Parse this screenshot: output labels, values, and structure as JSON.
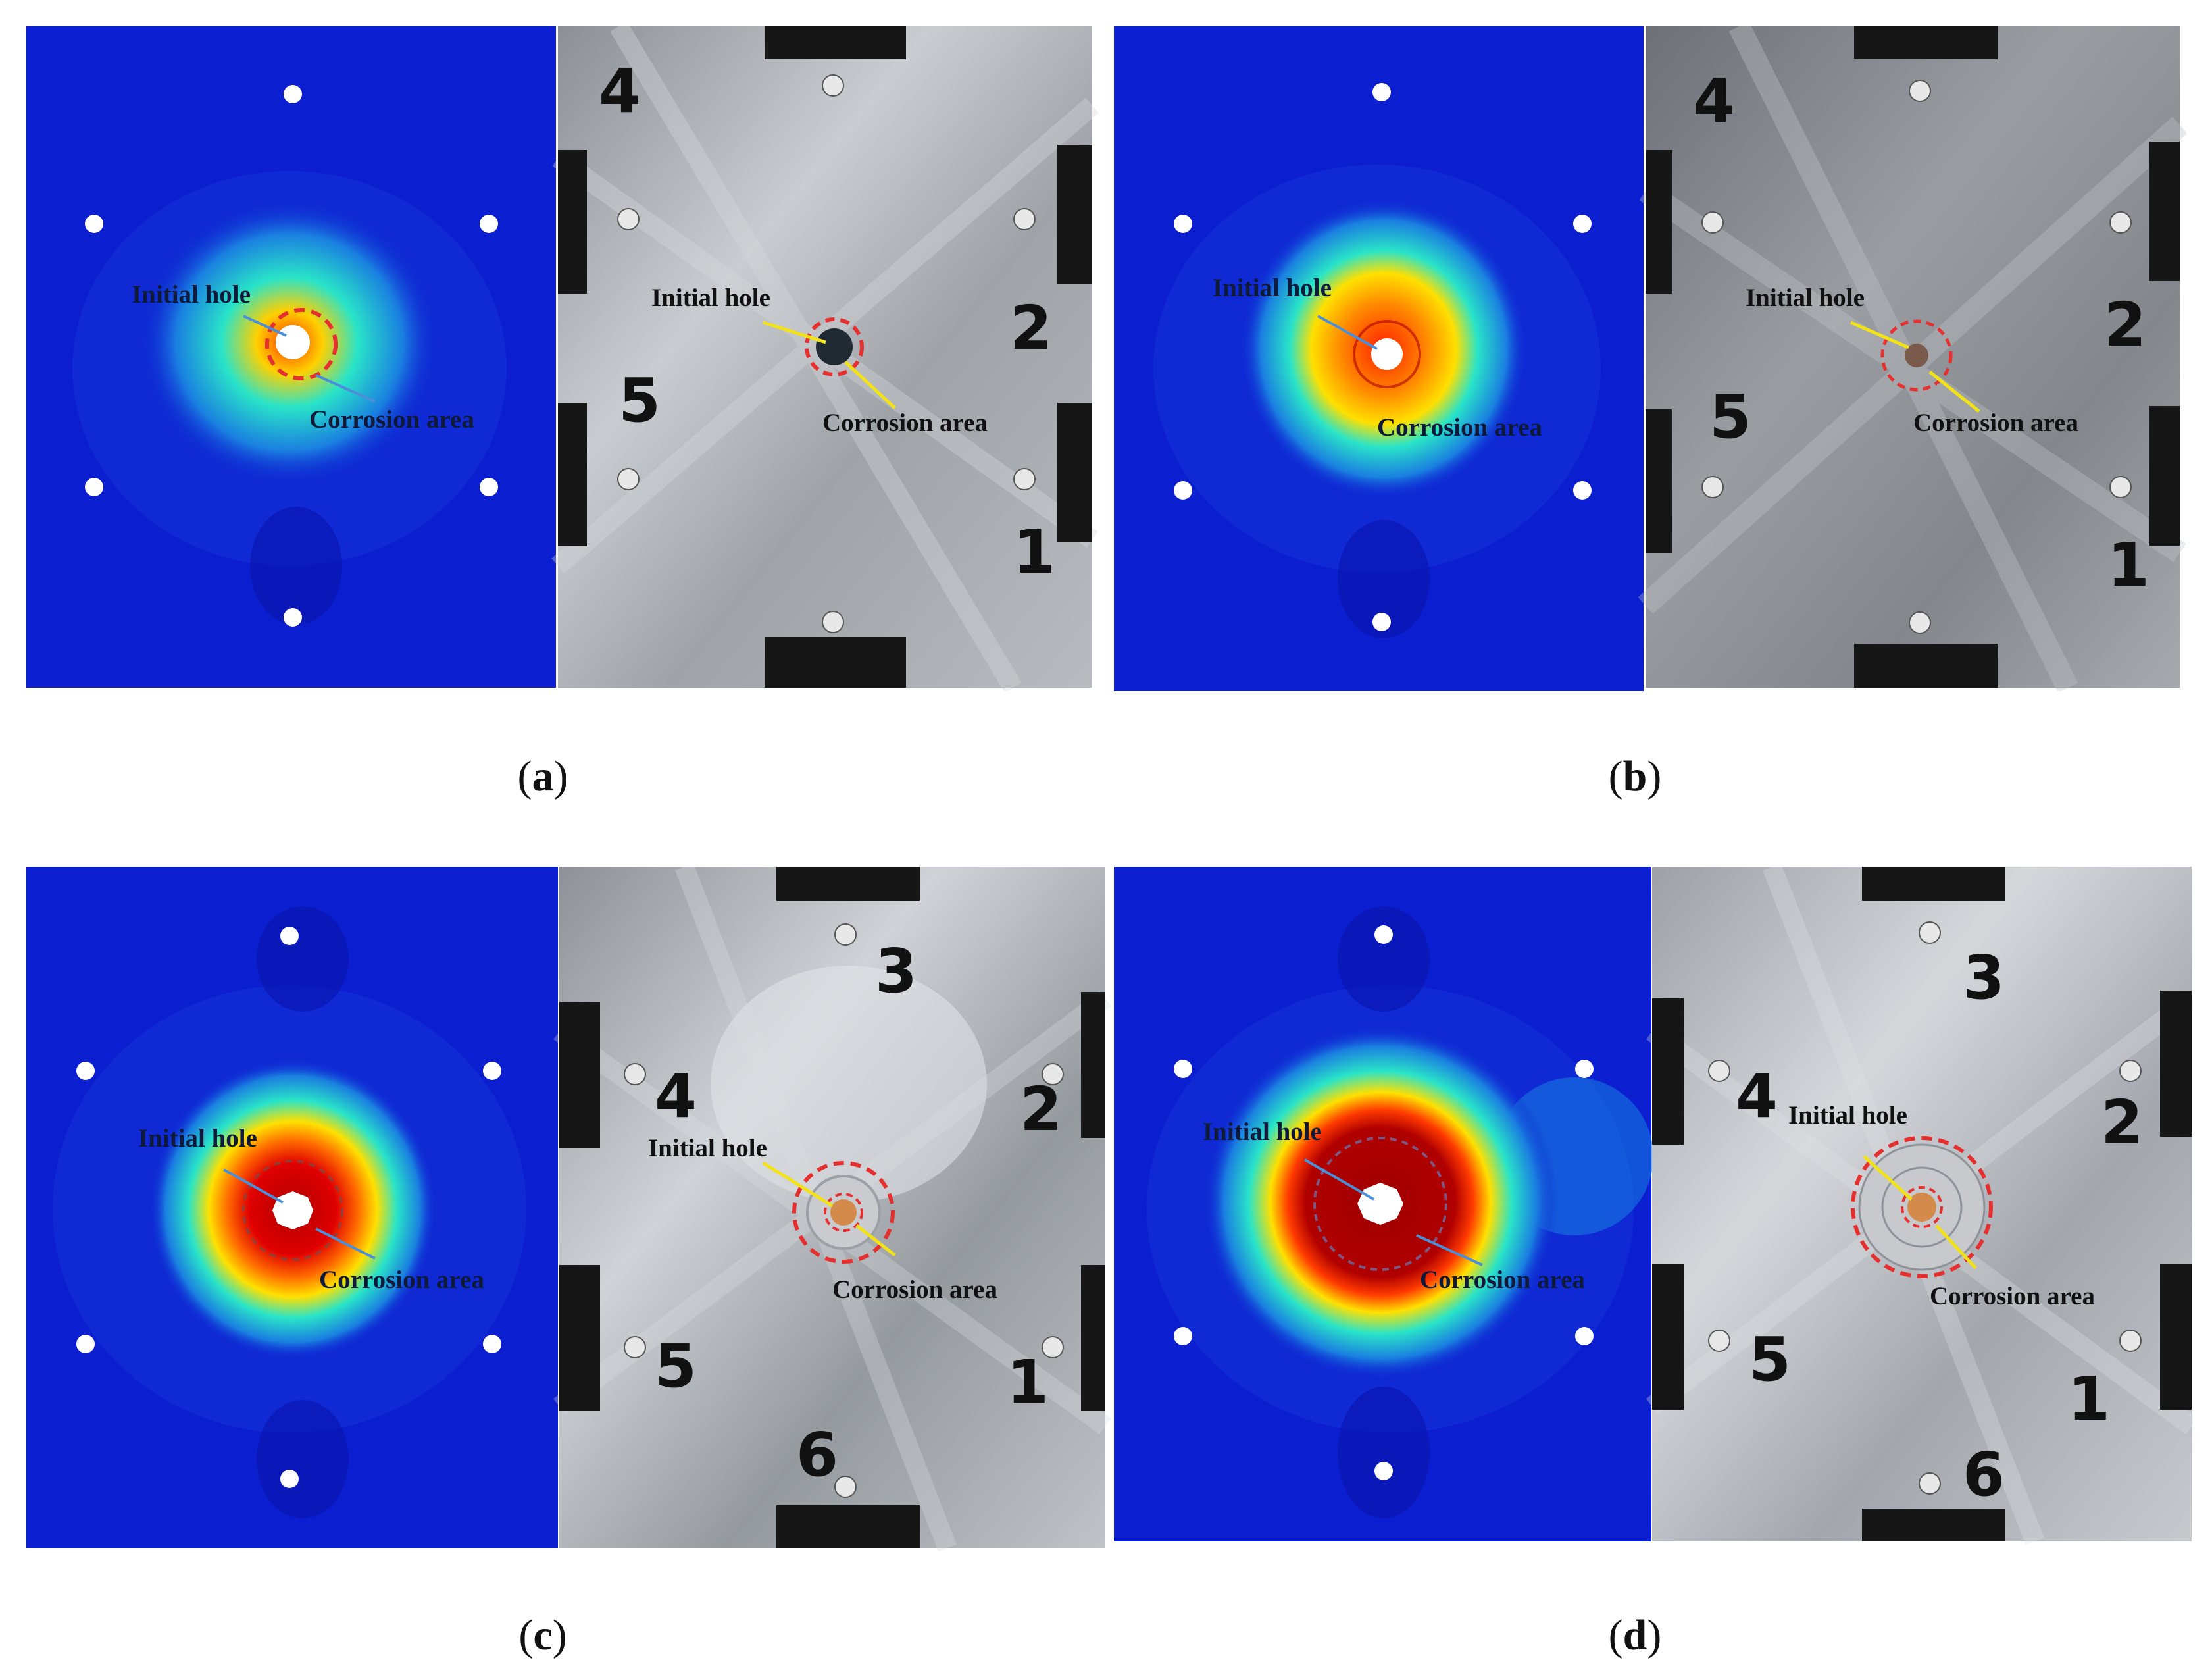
{
  "figure": {
    "panels": [
      {
        "id": "a",
        "caption_letter": "a",
        "simulation": {
          "initial_hole_label": "Initial hole",
          "corrosion_area_label": "Corrosion area"
        },
        "photo": {
          "initial_hole_label": "Initial hole",
          "corrosion_area_label": "Corrosion area",
          "sensor_numbers": [
            "4",
            "2",
            "5",
            "1"
          ]
        }
      },
      {
        "id": "b",
        "caption_letter": "b",
        "simulation": {
          "initial_hole_label": "Initial hole",
          "corrosion_area_label": "Corrosion area"
        },
        "photo": {
          "initial_hole_label": "Initial hole",
          "corrosion_area_label": "Corrosion area",
          "sensor_numbers": [
            "4",
            "2",
            "5",
            "1"
          ]
        }
      },
      {
        "id": "c",
        "caption_letter": "c",
        "simulation": {
          "initial_hole_label": "Initial hole",
          "corrosion_area_label": "Corrosion area"
        },
        "photo": {
          "initial_hole_label": "Initial hole",
          "corrosion_area_label": "Corrosion area",
          "sensor_numbers": [
            "3",
            "4",
            "2",
            "5",
            "1",
            "6"
          ]
        }
      },
      {
        "id": "d",
        "caption_letter": "d",
        "simulation": {
          "initial_hole_label": "Initial hole",
          "corrosion_area_label": "Corrosion area"
        },
        "photo": {
          "initial_hole_label": "Initial hole",
          "corrosion_area_label": "Corrosion area",
          "sensor_numbers": [
            "3",
            "4",
            "2",
            "5",
            "1",
            "6"
          ]
        }
      }
    ],
    "colors": {
      "sim_background": "#0b1fd0",
      "heat_hot": "#b00000",
      "heat_warm": "#ff3a00",
      "heat_mid": "#ffe000",
      "heat_cool": "#29e4c8",
      "marker_ring": "#e53030",
      "leader_yellow": "#f2e21a",
      "leader_blue": "#4a8fd8",
      "plate_metal": "#a9adb2",
      "sensor_pad": "#161616"
    }
  }
}
